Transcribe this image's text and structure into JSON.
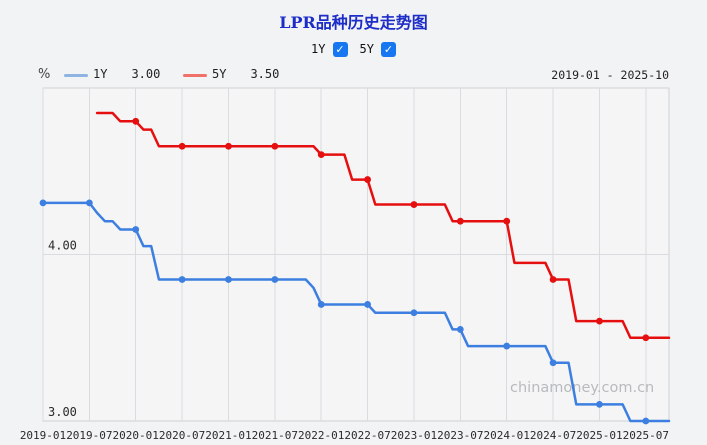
{
  "title": "LPR品种历史走势图",
  "controls": {
    "items": [
      {
        "label": "1Y",
        "checked": true
      },
      {
        "label": "5Y",
        "checked": true
      }
    ]
  },
  "legend": {
    "unit": "%",
    "items": [
      {
        "label": "1Y",
        "value": "3.00",
        "color": "#8fb4e3"
      },
      {
        "label": "5Y",
        "value": "3.50",
        "color": "#f0716a"
      }
    ],
    "date_range": "2019-01 - 2025-10"
  },
  "watermark": "chinamoney.com.cn",
  "chart_data": {
    "type": "line",
    "title": "LPR品种历史走势图",
    "x_start": "2019-01",
    "x_end": "2025-10",
    "x_months_total": 82,
    "x_tick_labels": [
      "2019-01",
      "2019-07",
      "2020-01",
      "2020-07",
      "2021-01",
      "2021-07",
      "2022-01",
      "2022-07",
      "2023-01",
      "2023-07",
      "2024-01",
      "2024-07",
      "2025-01",
      "2025-07"
    ],
    "x_tick_interval_months": 6,
    "ylim": [
      3.0,
      5.0
    ],
    "y_ticks": [
      {
        "value": 3.0,
        "label": "3.00"
      },
      {
        "value": 4.0,
        "label": "4.00"
      }
    ],
    "grid": true,
    "marker_every_months": 6,
    "series": [
      {
        "name": "1Y",
        "color": "#3d7fe0",
        "start_index": 0,
        "values": [
          4.31,
          4.31,
          4.31,
          4.31,
          4.31,
          4.31,
          4.31,
          4.25,
          4.2,
          4.2,
          4.15,
          4.15,
          4.15,
          4.05,
          4.05,
          3.85,
          3.85,
          3.85,
          3.85,
          3.85,
          3.85,
          3.85,
          3.85,
          3.85,
          3.85,
          3.85,
          3.85,
          3.85,
          3.85,
          3.85,
          3.85,
          3.85,
          3.85,
          3.85,
          3.85,
          3.8,
          3.7,
          3.7,
          3.7,
          3.7,
          3.7,
          3.7,
          3.7,
          3.65,
          3.65,
          3.65,
          3.65,
          3.65,
          3.65,
          3.65,
          3.65,
          3.65,
          3.65,
          3.55,
          3.55,
          3.45,
          3.45,
          3.45,
          3.45,
          3.45,
          3.45,
          3.45,
          3.45,
          3.45,
          3.45,
          3.45,
          3.35,
          3.35,
          3.35,
          3.1,
          3.1,
          3.1,
          3.1,
          3.1,
          3.1,
          3.1,
          3.0,
          3.0,
          3.0,
          3.0,
          3.0,
          3.0
        ]
      },
      {
        "name": "5Y",
        "color": "#e60f0f",
        "start_index": 7,
        "values": [
          4.85,
          4.85,
          4.85,
          4.8,
          4.8,
          4.8,
          4.75,
          4.75,
          4.65,
          4.65,
          4.65,
          4.65,
          4.65,
          4.65,
          4.65,
          4.65,
          4.65,
          4.65,
          4.65,
          4.65,
          4.65,
          4.65,
          4.65,
          4.65,
          4.65,
          4.65,
          4.65,
          4.65,
          4.65,
          4.6,
          4.6,
          4.6,
          4.6,
          4.45,
          4.45,
          4.45,
          4.3,
          4.3,
          4.3,
          4.3,
          4.3,
          4.3,
          4.3,
          4.3,
          4.3,
          4.3,
          4.2,
          4.2,
          4.2,
          4.2,
          4.2,
          4.2,
          4.2,
          4.2,
          3.95,
          3.95,
          3.95,
          3.95,
          3.95,
          3.85,
          3.85,
          3.85,
          3.6,
          3.6,
          3.6,
          3.6,
          3.6,
          3.6,
          3.6,
          3.5,
          3.5,
          3.5,
          3.5,
          3.5,
          3.5
        ]
      }
    ]
  }
}
